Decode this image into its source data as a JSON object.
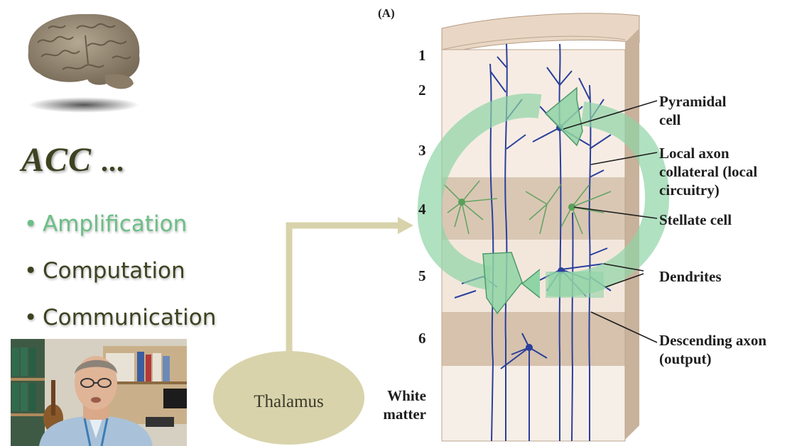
{
  "slide": {
    "title": "ACC",
    "title_suffix": "...",
    "bullets": [
      {
        "label": "Amplification",
        "state": "highlighted",
        "color": "#6bbf86"
      },
      {
        "label": "Computation",
        "state": "normal",
        "color": "#3e4221"
      },
      {
        "label": "Communication",
        "state": "normal",
        "color": "#3e4221"
      }
    ],
    "bullet_glyph": "•"
  },
  "diagram": {
    "panel_label": "(A)",
    "layers": [
      "1",
      "2",
      "3",
      "4",
      "5",
      "6"
    ],
    "white_matter_label": "White matter",
    "annotations": {
      "pyramidal": "Pyramidal cell",
      "local_axon": "Local axon collateral (local circuitry)",
      "stellate": "Stellate cell",
      "dendrites": "Dendrites",
      "descending_axon": "Descending axon (output)"
    },
    "input_label": "Thalamus"
  },
  "icons": {
    "logo": "brain-icon",
    "loop": "circular-arrows-icon",
    "input_arrow": "arrow-right-icon"
  },
  "colors": {
    "title": "#3e4221",
    "highlight": "#6bbf86",
    "thalamus": "#d8d3ab",
    "arrow_green": "#8fd4a5",
    "neuron_blue": "#2a3f9c",
    "stellate_green": "#5aa05a",
    "cortex_light": "#f4ebe3",
    "cortex_band": "#d9c7b4"
  }
}
